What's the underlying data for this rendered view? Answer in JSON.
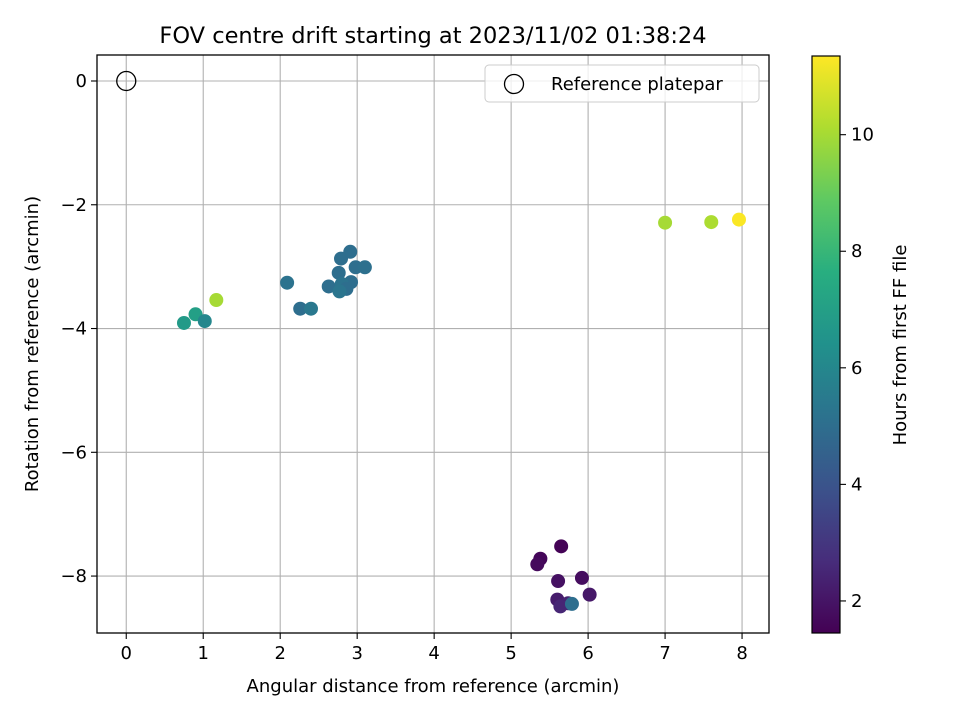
{
  "chart_data": {
    "type": "scatter",
    "title": "FOV centre drift starting at 2023/11/02 01:38:24",
    "xlabel": "Angular distance from reference (arcmin)",
    "ylabel": "Rotation from reference (arcmin)",
    "xlim": [
      -0.38,
      8.35
    ],
    "ylim": [
      -8.92,
      0.42
    ],
    "xticks": [
      0,
      1,
      2,
      3,
      4,
      5,
      6,
      7,
      8
    ],
    "yticks": [
      0,
      -2,
      -4,
      -6,
      -8
    ],
    "xtick_labels": [
      "0",
      "1",
      "2",
      "3",
      "4",
      "5",
      "6",
      "7",
      "8"
    ],
    "ytick_labels": [
      "0",
      "−2",
      "−4",
      "−6",
      "−8"
    ],
    "grid": true,
    "legend": {
      "placement": "top-right",
      "entries": [
        "Reference platepar"
      ]
    },
    "reference_point": {
      "x": 0,
      "y": 0,
      "label": "Reference platepar"
    },
    "colorbar": {
      "label": "Hours from first FF file",
      "colormap": "viridis",
      "range": [
        1.45,
        11.35
      ],
      "ticks": [
        2,
        4,
        6,
        8,
        10
      ],
      "tick_labels": [
        "2",
        "4",
        "6",
        "8",
        "10"
      ]
    },
    "series": [
      {
        "points": [
          {
            "x": 5.65,
            "y": -7.52,
            "hours": 1.5
          },
          {
            "x": 5.38,
            "y": -7.72,
            "hours": 1.6
          },
          {
            "x": 5.34,
            "y": -7.81,
            "hours": 1.7
          },
          {
            "x": 5.92,
            "y": -8.03,
            "hours": 1.8
          },
          {
            "x": 5.61,
            "y": -8.08,
            "hours": 1.9
          },
          {
            "x": 6.02,
            "y": -8.3,
            "hours": 2.1
          },
          {
            "x": 5.6,
            "y": -8.38,
            "hours": 2.2
          },
          {
            "x": 5.74,
            "y": -8.44,
            "hours": 2.4
          },
          {
            "x": 5.64,
            "y": -8.49,
            "hours": 2.5
          },
          {
            "x": 5.79,
            "y": -8.45,
            "hours": 5.0
          },
          {
            "x": 2.09,
            "y": -3.26,
            "hours": 5.2
          },
          {
            "x": 2.26,
            "y": -3.68,
            "hours": 5.0
          },
          {
            "x": 2.4,
            "y": -3.68,
            "hours": 5.4
          },
          {
            "x": 2.63,
            "y": -3.32,
            "hours": 5.0
          },
          {
            "x": 2.76,
            "y": -3.1,
            "hours": 5.0
          },
          {
            "x": 2.79,
            "y": -2.87,
            "hours": 5.0
          },
          {
            "x": 2.91,
            "y": -2.76,
            "hours": 5.0
          },
          {
            "x": 2.92,
            "y": -3.25,
            "hours": 5.0
          },
          {
            "x": 2.8,
            "y": -3.28,
            "hours": 5.2
          },
          {
            "x": 2.86,
            "y": -3.36,
            "hours": 5.0
          },
          {
            "x": 2.77,
            "y": -3.4,
            "hours": 5.3
          },
          {
            "x": 2.98,
            "y": -3.01,
            "hours": 5.0
          },
          {
            "x": 3.1,
            "y": -3.01,
            "hours": 5.1
          },
          {
            "x": 0.75,
            "y": -3.91,
            "hours": 6.8
          },
          {
            "x": 0.9,
            "y": -3.77,
            "hours": 7.0
          },
          {
            "x": 1.02,
            "y": -3.88,
            "hours": 6.0
          },
          {
            "x": 1.17,
            "y": -3.54,
            "hours": 10.0
          },
          {
            "x": 7.0,
            "y": -2.29,
            "hours": 10.0
          },
          {
            "x": 7.6,
            "y": -2.28,
            "hours": 10.1
          },
          {
            "x": 7.96,
            "y": -2.24,
            "hours": 11.3
          }
        ]
      }
    ]
  }
}
